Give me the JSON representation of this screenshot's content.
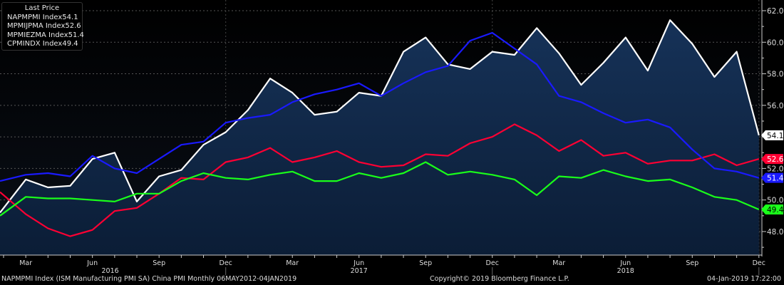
{
  "chart_data": {
    "type": "line",
    "title": "",
    "legend_title": "Last Price",
    "legend_position": "top-left",
    "x": [
      "2016-02",
      "2016-03",
      "2016-04",
      "2016-05",
      "2016-06",
      "2016-07",
      "2016-08",
      "2016-09",
      "2016-10",
      "2016-11",
      "2016-12",
      "2017-01",
      "2017-02",
      "2017-03",
      "2017-04",
      "2017-05",
      "2017-06",
      "2017-07",
      "2017-08",
      "2017-09",
      "2017-10",
      "2017-11",
      "2017-12",
      "2018-01",
      "2018-02",
      "2018-03",
      "2018-04",
      "2018-05",
      "2018-06",
      "2018-07",
      "2018-08",
      "2018-09",
      "2018-10",
      "2018-11",
      "2018-12"
    ],
    "x_tick_labels": [
      {
        "label": "Mar",
        "index": 1
      },
      {
        "label": "Jun",
        "index": 4
      },
      {
        "label": "Sep",
        "index": 7
      },
      {
        "label": "Dec",
        "index": 10
      },
      {
        "label": "Mar",
        "index": 13
      },
      {
        "label": "Jun",
        "index": 16
      },
      {
        "label": "Sep",
        "index": 19
      },
      {
        "label": "Dec",
        "index": 22
      },
      {
        "label": "Mar",
        "index": 25
      },
      {
        "label": "Jun",
        "index": 28
      },
      {
        "label": "Sep",
        "index": 31
      },
      {
        "label": "Dec",
        "index": 34
      }
    ],
    "year_labels": [
      {
        "label": "2016",
        "index": 4.8
      },
      {
        "label": "2017",
        "index": 16
      },
      {
        "label": "2018",
        "index": 28
      }
    ],
    "ylim": [
      46.5,
      62.6
    ],
    "y_ticks": [
      "62.0",
      "60.0",
      "58.0",
      "56.0",
      "52.0",
      "50.0",
      "48.0"
    ],
    "y_tick_values": [
      62,
      60,
      58,
      56,
      52,
      50,
      48
    ],
    "grid": true,
    "series": [
      {
        "name": "NAPMPMI Index",
        "last": "54.1",
        "color": "#ffffff",
        "area": true,
        "values": [
          49.2,
          51.3,
          50.8,
          50.9,
          52.6,
          53.0,
          49.9,
          51.5,
          51.9,
          53.5,
          54.3,
          55.7,
          57.7,
          56.8,
          55.4,
          55.6,
          56.8,
          56.6,
          59.4,
          60.3,
          58.6,
          58.3,
          59.4,
          59.2,
          60.9,
          59.3,
          57.3,
          58.7,
          60.3,
          58.2,
          61.4,
          59.9,
          57.8,
          59.4,
          54.1
        ]
      },
      {
        "name": "MPMIJPMA Index",
        "last": "52.6",
        "color": "#ff0033",
        "values": [
          50.5,
          49.1,
          48.2,
          47.7,
          48.1,
          49.3,
          49.5,
          50.4,
          51.4,
          51.3,
          52.4,
          52.7,
          53.3,
          52.4,
          52.7,
          53.1,
          52.4,
          52.1,
          52.2,
          52.9,
          52.8,
          53.6,
          54.0,
          54.8,
          54.1,
          53.1,
          53.8,
          52.8,
          53.0,
          52.3,
          52.5,
          52.5,
          52.9,
          52.2,
          52.6
        ]
      },
      {
        "name": "MPMIEZMA Index",
        "last": "51.4",
        "color": "#1a1aff",
        "values": [
          51.2,
          51.6,
          51.7,
          51.5,
          52.8,
          52.0,
          51.7,
          52.6,
          53.5,
          53.7,
          54.9,
          55.2,
          55.4,
          56.2,
          56.7,
          57.0,
          57.4,
          56.6,
          57.4,
          58.1,
          58.5,
          60.1,
          60.6,
          59.6,
          58.6,
          56.6,
          56.2,
          55.5,
          54.9,
          55.1,
          54.6,
          53.2,
          52.0,
          51.8,
          51.4
        ]
      },
      {
        "name": "CPMINDX Index",
        "last": "49.4",
        "color": "#1aff1a",
        "values": [
          49.0,
          50.2,
          50.1,
          50.1,
          50.0,
          49.9,
          50.4,
          50.4,
          51.2,
          51.7,
          51.4,
          51.3,
          51.6,
          51.8,
          51.2,
          51.2,
          51.7,
          51.4,
          51.7,
          52.4,
          51.6,
          51.8,
          51.6,
          51.3,
          50.3,
          51.5,
          51.4,
          51.9,
          51.5,
          51.2,
          51.3,
          50.8,
          50.2,
          50.0,
          49.4
        ]
      }
    ]
  },
  "footer": {
    "left": "NAPMPMI Index (ISM Manufacturing PMI SA) China PMI  Monthly 06MAY2012-04JAN2019",
    "center": "Copyright© 2019 Bloomberg Finance L.P.",
    "right": "04-Jan-2019 17:22:00"
  }
}
